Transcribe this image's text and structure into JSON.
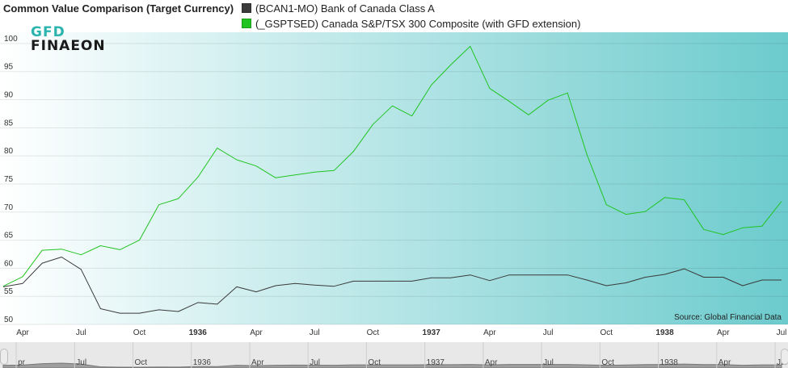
{
  "header": {
    "title": "Common Value Comparison (Target Currency)",
    "legend": [
      {
        "label": "(BCAN1-MO) Bank of Canada Class A",
        "color": "#3a3a3a"
      },
      {
        "label": "(_GSPTSED) Canada S&P/TSX 300 Composite (with GFD extension)",
        "color": "#21c421"
      }
    ]
  },
  "logo": {
    "line1": "GFD",
    "line2": "FINAEON",
    "color": "#2bb3ae"
  },
  "source": "Source: Global Financial Data",
  "colors": {
    "bg_light": "#ffffff",
    "bg_dark": "#6ccbcd",
    "series0": "#3a3a3a",
    "series1": "#21c421",
    "navigator": "#9e9e9e"
  },
  "chart_data": {
    "type": "line",
    "y_ticks": [
      50,
      55,
      60,
      65,
      70,
      75,
      80,
      85,
      90,
      95,
      100
    ],
    "ylim": [
      50,
      102
    ],
    "x_labels": [
      {
        "label": "Apr",
        "date": "1935-04",
        "bold": false
      },
      {
        "label": "Jul",
        "date": "1935-07",
        "bold": false
      },
      {
        "label": "Oct",
        "date": "1935-10",
        "bold": false
      },
      {
        "label": "1936",
        "date": "1936-01",
        "bold": true
      },
      {
        "label": "Apr",
        "date": "1936-04",
        "bold": false
      },
      {
        "label": "Jul",
        "date": "1936-07",
        "bold": false
      },
      {
        "label": "Oct",
        "date": "1936-10",
        "bold": false
      },
      {
        "label": "1937",
        "date": "1937-01",
        "bold": true
      },
      {
        "label": "Apr",
        "date": "1937-04",
        "bold": false
      },
      {
        "label": "Jul",
        "date": "1937-07",
        "bold": false
      },
      {
        "label": "Oct",
        "date": "1937-10",
        "bold": false
      },
      {
        "label": "1938",
        "date": "1938-01",
        "bold": true
      },
      {
        "label": "Apr",
        "date": "1938-04",
        "bold": false
      },
      {
        "label": "Jul",
        "date": "1938-07",
        "bold": false
      }
    ],
    "series": [
      {
        "name": "(BCAN1-MO) Bank of Canada Class A",
        "color": "#3a3a3a",
        "points": [
          [
            "1935-03",
            56.7
          ],
          [
            "1935-04",
            57.3
          ],
          [
            "1935-05",
            60.9
          ],
          [
            "1935-06",
            62.0
          ],
          [
            "1935-07",
            59.8
          ],
          [
            "1935-08",
            52.8
          ],
          [
            "1935-09",
            52.0
          ],
          [
            "1935-10",
            52.0
          ],
          [
            "1935-11",
            52.6
          ],
          [
            "1935-12",
            52.3
          ],
          [
            "1936-01",
            53.9
          ],
          [
            "1936-02",
            53.6
          ],
          [
            "1936-03",
            56.7
          ],
          [
            "1936-04",
            55.8
          ],
          [
            "1936-05",
            56.9
          ],
          [
            "1936-06",
            57.3
          ],
          [
            "1936-07",
            57.0
          ],
          [
            "1936-08",
            56.8
          ],
          [
            "1936-09",
            57.7
          ],
          [
            "1936-10",
            57.7
          ],
          [
            "1936-11",
            57.7
          ],
          [
            "1936-12",
            57.7
          ],
          [
            "1937-01",
            58.3
          ],
          [
            "1937-02",
            58.3
          ],
          [
            "1937-03",
            58.8
          ],
          [
            "1937-04",
            57.8
          ],
          [
            "1937-05",
            58.8
          ],
          [
            "1937-06",
            58.8
          ],
          [
            "1937-07",
            58.8
          ],
          [
            "1937-08",
            58.8
          ],
          [
            "1937-09",
            57.9
          ],
          [
            "1937-10",
            56.9
          ],
          [
            "1937-11",
            57.4
          ],
          [
            "1937-12",
            58.4
          ],
          [
            "1938-01",
            58.9
          ],
          [
            "1938-02",
            59.9
          ],
          [
            "1938-03",
            58.4
          ],
          [
            "1938-04",
            58.4
          ],
          [
            "1938-05",
            56.9
          ],
          [
            "1938-06",
            57.9
          ],
          [
            "1938-07",
            57.9
          ]
        ]
      },
      {
        "name": "(_GSPTSED) Canada S&P/TSX 300 Composite (with GFD extension)",
        "color": "#21c421",
        "points": [
          [
            "1935-03",
            56.8
          ],
          [
            "1935-04",
            58.5
          ],
          [
            "1935-05",
            63.2
          ],
          [
            "1935-06",
            63.4
          ],
          [
            "1935-07",
            62.4
          ],
          [
            "1935-08",
            64.0
          ],
          [
            "1935-09",
            63.3
          ],
          [
            "1935-10",
            65.0
          ],
          [
            "1935-11",
            71.3
          ],
          [
            "1935-12",
            72.4
          ],
          [
            "1936-01",
            76.2
          ],
          [
            "1936-02",
            81.4
          ],
          [
            "1936-03",
            79.3
          ],
          [
            "1936-04",
            78.2
          ],
          [
            "1936-05",
            76.1
          ],
          [
            "1936-06",
            76.6
          ],
          [
            "1936-07",
            77.1
          ],
          [
            "1936-08",
            77.4
          ],
          [
            "1936-09",
            80.8
          ],
          [
            "1936-10",
            85.6
          ],
          [
            "1936-11",
            88.9
          ],
          [
            "1936-12",
            87.1
          ],
          [
            "1937-01",
            92.6
          ],
          [
            "1937-02",
            96.2
          ],
          [
            "1937-03",
            99.5
          ],
          [
            "1937-04",
            92.0
          ],
          [
            "1937-05",
            89.7
          ],
          [
            "1937-06",
            87.3
          ],
          [
            "1937-07",
            89.9
          ],
          [
            "1937-08",
            91.2
          ],
          [
            "1937-09",
            80.2
          ],
          [
            "1937-10",
            71.3
          ],
          [
            "1937-11",
            69.6
          ],
          [
            "1937-12",
            70.1
          ],
          [
            "1938-01",
            72.6
          ],
          [
            "1938-02",
            72.2
          ],
          [
            "1938-03",
            66.9
          ],
          [
            "1938-04",
            66.0
          ],
          [
            "1938-05",
            67.2
          ],
          [
            "1938-06",
            67.5
          ],
          [
            "1938-07",
            71.9
          ]
        ]
      }
    ],
    "navigator_labels": [
      {
        "label": "pr",
        "date": "1935-04"
      },
      {
        "label": "Jul",
        "date": "1935-07"
      },
      {
        "label": "Oct",
        "date": "1935-10"
      },
      {
        "label": "1936",
        "date": "1936-01"
      },
      {
        "label": "Apr",
        "date": "1936-04"
      },
      {
        "label": "Jul",
        "date": "1936-07"
      },
      {
        "label": "Oct",
        "date": "1936-10"
      },
      {
        "label": "1937",
        "date": "1937-01"
      },
      {
        "label": "Apr",
        "date": "1937-04"
      },
      {
        "label": "Jul",
        "date": "1937-07"
      },
      {
        "label": "Oct",
        "date": "1937-10"
      },
      {
        "label": "1938",
        "date": "1938-01"
      },
      {
        "label": "Apr",
        "date": "1938-04"
      },
      {
        "label": "Jul",
        "date": "1938-07"
      }
    ],
    "grid": true,
    "legend_position": "top"
  }
}
